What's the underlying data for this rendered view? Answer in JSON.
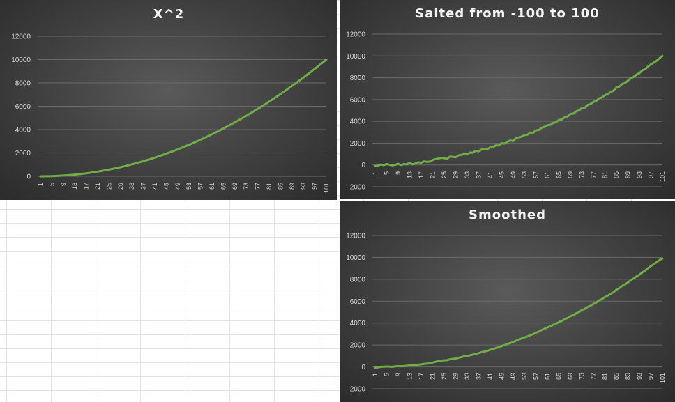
{
  "chart_data": [
    {
      "type": "line",
      "title": "X^2",
      "categories_start": 1,
      "categories_end": 101,
      "tick_step": 4,
      "ylim": [
        0,
        12000
      ],
      "yticks": [
        0,
        2000,
        4000,
        6000,
        8000,
        10000,
        12000
      ],
      "grid": true,
      "legend": "none",
      "series": [
        {
          "values": [
            0,
            1,
            4,
            9,
            16,
            25,
            36,
            49,
            64,
            81,
            100,
            121,
            144,
            169,
            196,
            225,
            256,
            289,
            324,
            361,
            400,
            441,
            484,
            529,
            576,
            625,
            676,
            729,
            784,
            841,
            900,
            961,
            1024,
            1089,
            1156,
            1225,
            1296,
            1369,
            1444,
            1521,
            1600,
            1681,
            1764,
            1849,
            1936,
            2025,
            2116,
            2209,
            2304,
            2401,
            2500,
            2601,
            2704,
            2809,
            2916,
            3025,
            3136,
            3249,
            3364,
            3481,
            3600,
            3721,
            3844,
            3969,
            4096,
            4225,
            4356,
            4489,
            4624,
            4761,
            4900,
            5041,
            5184,
            5329,
            5476,
            5625,
            5776,
            5929,
            6084,
            6241,
            6400,
            6561,
            6724,
            6889,
            7056,
            7225,
            7396,
            7569,
            7744,
            7921,
            8100,
            8281,
            8464,
            8649,
            8836,
            9025,
            9216,
            9409,
            9604,
            9801,
            10000
          ]
        }
      ]
    },
    {
      "type": "line",
      "title": "Salted from -100 to 100",
      "categories_start": 1,
      "categories_end": 101,
      "tick_step": 4,
      "ylim": [
        -2000,
        12000
      ],
      "yticks": [
        -2000,
        0,
        2000,
        4000,
        6000,
        8000,
        10000,
        12000
      ],
      "grid": true,
      "legend": "none",
      "series": [
        {
          "values": [
            -90,
            -60,
            40,
            -20,
            80,
            20,
            -40,
            10,
            100,
            -10,
            90,
            40,
            200,
            60,
            130,
            250,
            190,
            330,
            280,
            300,
            450,
            530,
            580,
            650,
            620,
            560,
            760,
            740,
            700,
            880,
            920,
            1000,
            960,
            1130,
            1120,
            1300,
            1250,
            1410,
            1480,
            1450,
            1600,
            1640,
            1800,
            1780,
            1990,
            1960,
            2120,
            2250,
            2190,
            2450,
            2530,
            2600,
            2750,
            2770,
            2980,
            2950,
            3180,
            3200,
            3420,
            3490,
            3640,
            3680,
            3860,
            3930,
            4130,
            4170,
            4380,
            4450,
            4690,
            4710,
            4920,
            5010,
            5230,
            5260,
            5510,
            5600,
            5780,
            5880,
            6110,
            6200,
            6400,
            6510,
            6680,
            6830,
            7110,
            7190,
            7420,
            7530,
            7730,
            7950,
            8080,
            8290,
            8420,
            8680,
            8790,
            9030,
            9230,
            9380,
            9560,
            9790,
            10000
          ]
        }
      ]
    },
    {
      "type": "line",
      "title": "Smoothed",
      "categories_start": 1,
      "categories_end": 101,
      "tick_step": 4,
      "ylim": [
        -2000,
        12000
      ],
      "yticks": [
        -2000,
        0,
        2000,
        4000,
        6000,
        8000,
        10000,
        12000
      ],
      "grid": true,
      "legend": "none",
      "series": [
        {
          "values": [
            -70,
            -40,
            10,
            20,
            40,
            30,
            10,
            50,
            80,
            60,
            80,
            100,
            140,
            130,
            170,
            210,
            230,
            280,
            300,
            330,
            400,
            470,
            530,
            580,
            600,
            620,
            690,
            730,
            760,
            830,
            900,
            960,
            1000,
            1060,
            1120,
            1200,
            1250,
            1340,
            1410,
            1460,
            1560,
            1630,
            1720,
            1800,
            1910,
            1990,
            2090,
            2180,
            2260,
            2390,
            2500,
            2600,
            2700,
            2780,
            2900,
            2990,
            3120,
            3230,
            3380,
            3490,
            3620,
            3710,
            3840,
            3950,
            4100,
            4200,
            4360,
            4470,
            4640,
            4730,
            4900,
            5020,
            5200,
            5300,
            5480,
            5590,
            5760,
            5880,
            6080,
            6200,
            6380,
            6510,
            6670,
            6830,
            7060,
            7200,
            7400,
            7540,
            7720,
            7920,
            8080,
            8270,
            8420,
            8640,
            8800,
            9020,
            9210,
            9380,
            9560,
            9760,
            9900
          ]
        }
      ]
    }
  ]
}
